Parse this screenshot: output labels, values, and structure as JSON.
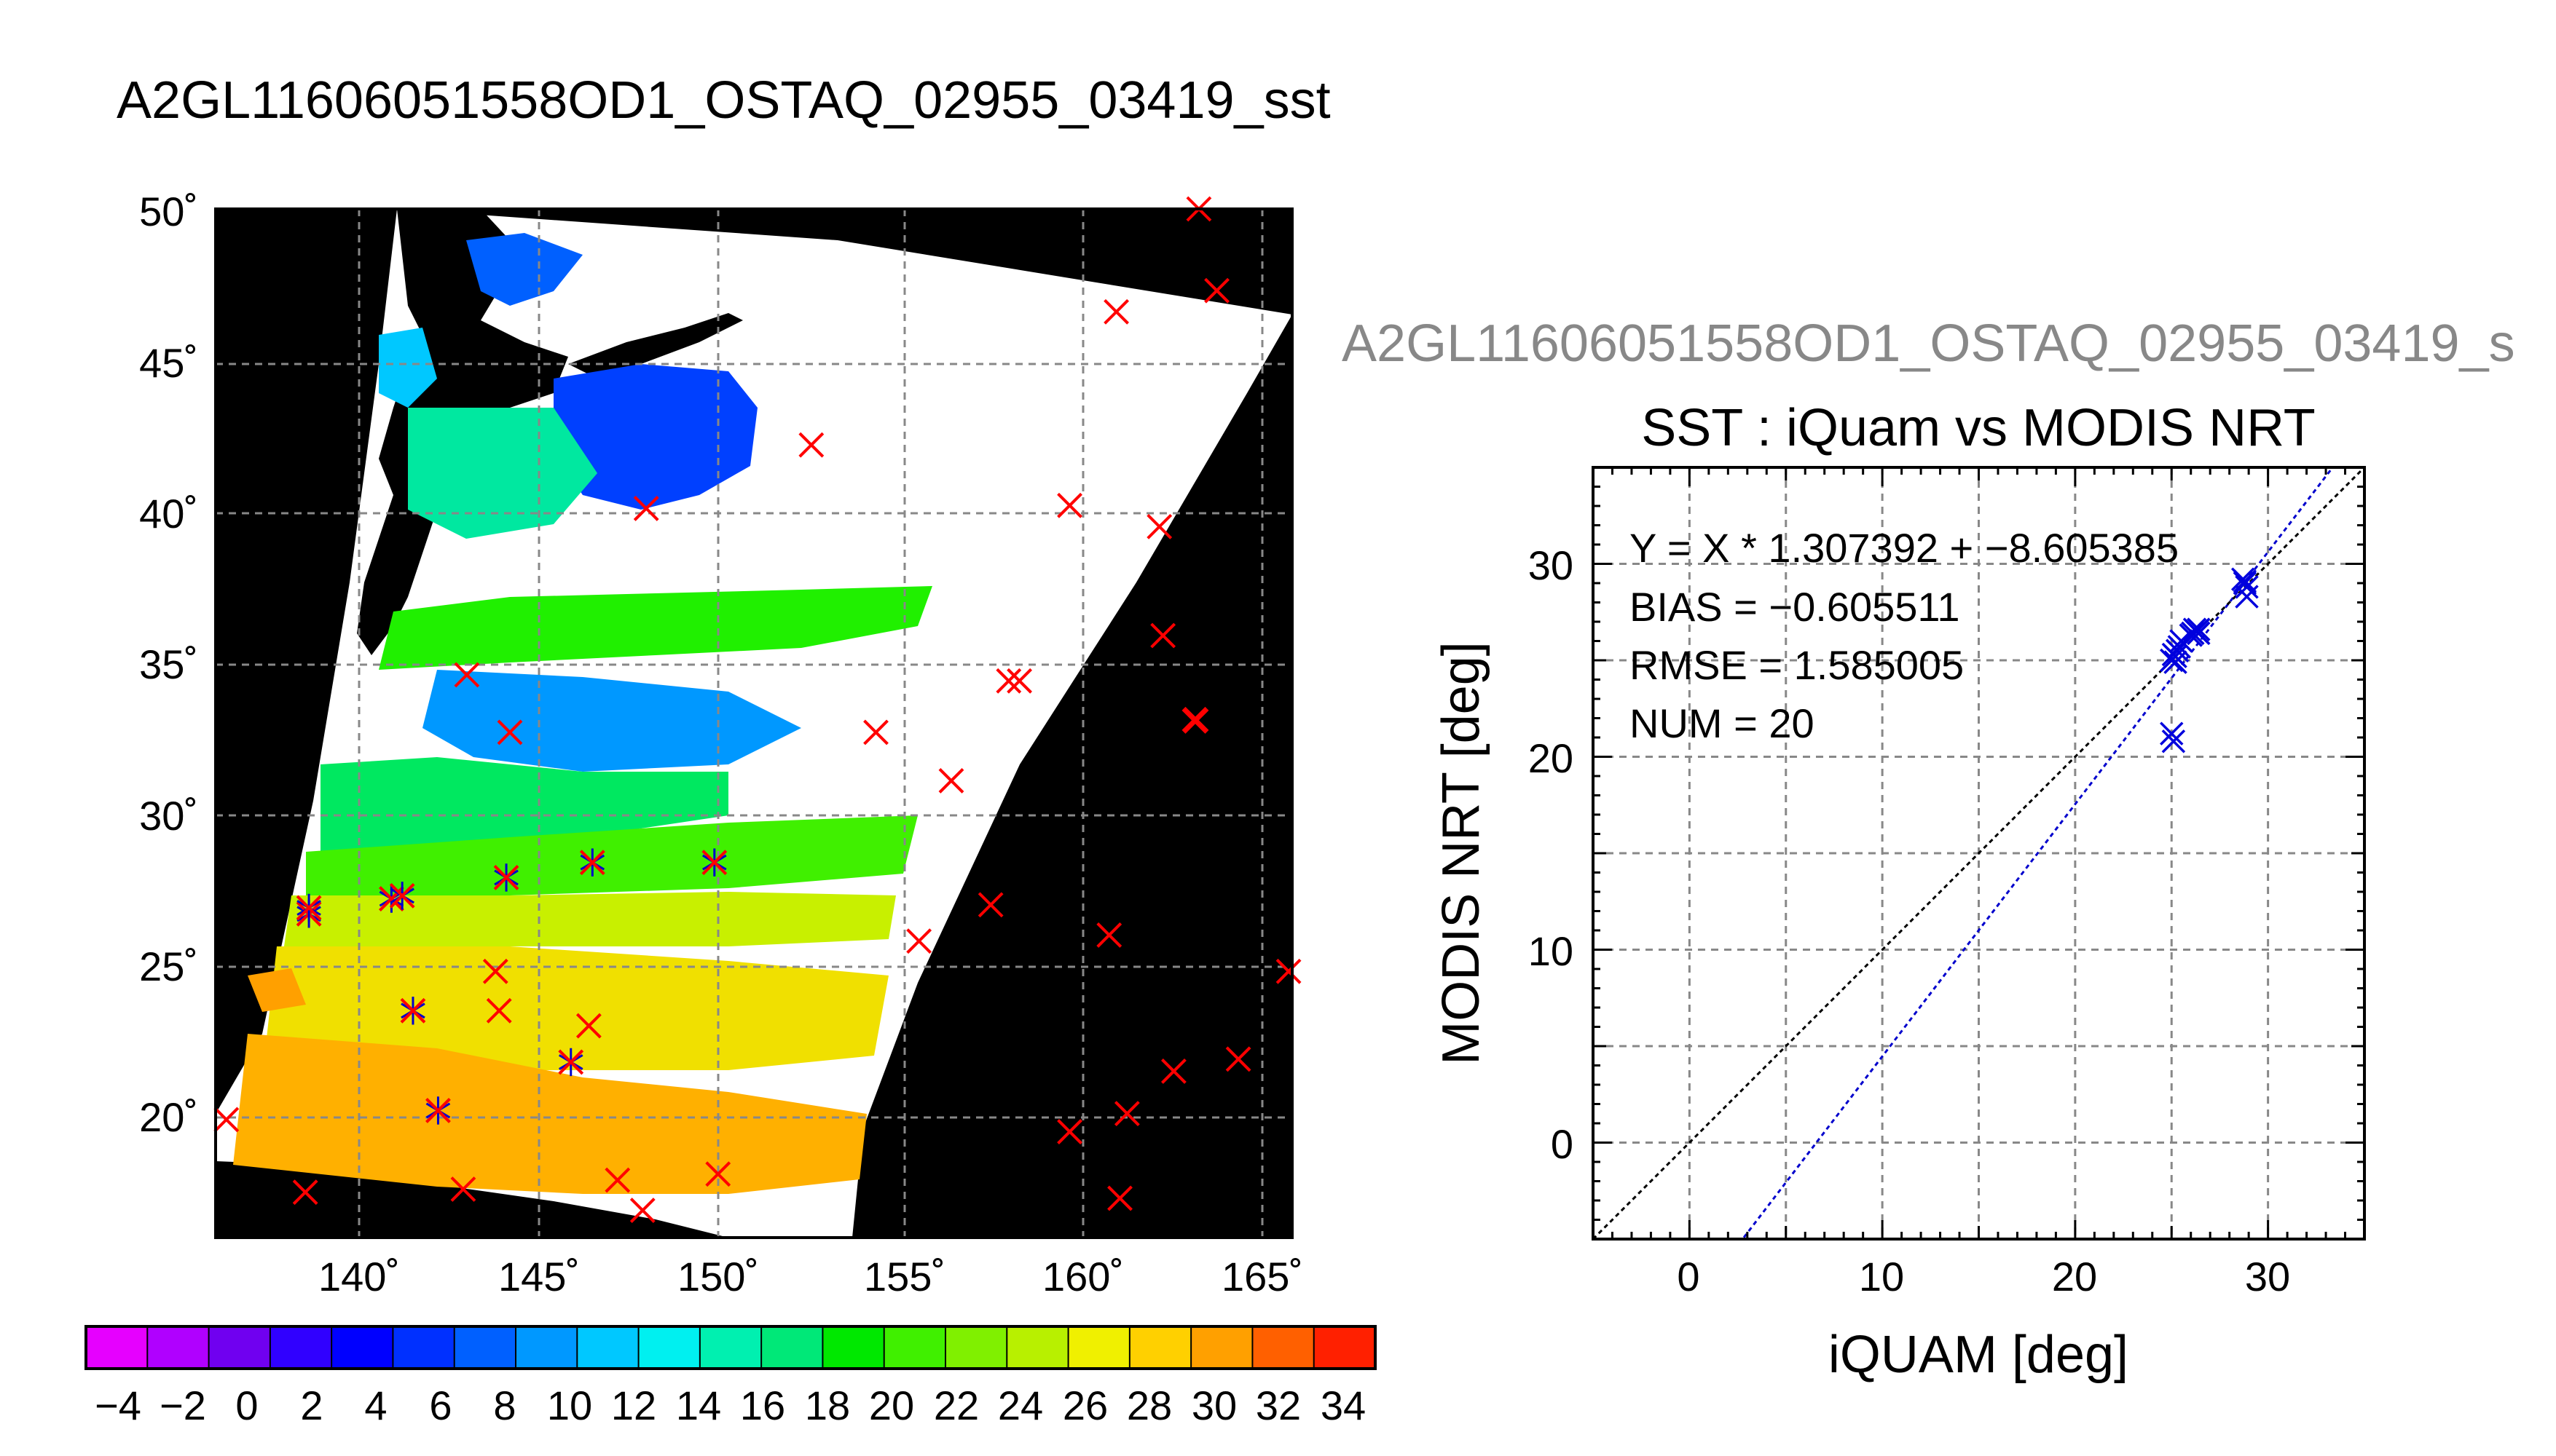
{
  "map": {
    "title": "A2GL11606051558OD1_OSTAQ_02955_03419_sst",
    "lon_ticks": [
      "140˚",
      "145˚",
      "150˚",
      "155˚",
      "160˚",
      "165˚"
    ],
    "lat_ticks": [
      "50˚",
      "45˚",
      "40˚",
      "35˚",
      "30˚",
      "25˚",
      "20˚"
    ],
    "colorbar": {
      "ticks": [
        "−4",
        "−2",
        "0",
        "2",
        "4",
        "6",
        "8",
        "10",
        "12",
        "14",
        "16",
        "18",
        "20",
        "22",
        "24",
        "26",
        "28",
        "30",
        "32",
        "34"
      ],
      "range": [
        -5,
        35
      ],
      "colors": [
        "#e600ff",
        "#b000ff",
        "#7000f0",
        "#3000ff",
        "#0000ff",
        "#0030ff",
        "#0060ff",
        "#0098ff",
        "#00c8ff",
        "#00f0f0",
        "#00f0b0",
        "#00e878",
        "#00e800",
        "#40f000",
        "#80f000",
        "#b8f000",
        "#f0f000",
        "#ffd000",
        "#ffa000",
        "#ff6000",
        "#ff2000"
      ]
    },
    "lon_range": [
      136,
      166
    ],
    "lat_range": [
      16,
      50
    ],
    "matchups": [
      {
        "lon": 136.3,
        "lat": 19.9,
        "type": "red"
      },
      {
        "lon": 138.6,
        "lat": 26.7,
        "type": "both"
      },
      {
        "lon": 138.6,
        "lat": 26.9,
        "type": "both"
      },
      {
        "lon": 138.5,
        "lat": 17.5,
        "type": "red"
      },
      {
        "lon": 140.9,
        "lat": 27.2,
        "type": "both"
      },
      {
        "lon": 141.2,
        "lat": 27.3,
        "type": "both"
      },
      {
        "lon": 141.5,
        "lat": 23.5,
        "type": "both"
      },
      {
        "lon": 142.2,
        "lat": 20.2,
        "type": "both"
      },
      {
        "lon": 142.9,
        "lat": 17.6,
        "type": "red"
      },
      {
        "lon": 143.0,
        "lat": 34.6,
        "type": "red"
      },
      {
        "lon": 143.8,
        "lat": 24.8,
        "type": "red"
      },
      {
        "lon": 143.9,
        "lat": 23.5,
        "type": "red"
      },
      {
        "lon": 144.1,
        "lat": 27.9,
        "type": "both"
      },
      {
        "lon": 144.2,
        "lat": 32.7,
        "type": "red"
      },
      {
        "lon": 145.9,
        "lat": 21.8,
        "type": "both"
      },
      {
        "lon": 146.4,
        "lat": 23.0,
        "type": "red"
      },
      {
        "lon": 146.5,
        "lat": 28.4,
        "type": "both"
      },
      {
        "lon": 147.2,
        "lat": 17.9,
        "type": "red"
      },
      {
        "lon": 147.9,
        "lat": 16.9,
        "type": "red"
      },
      {
        "lon": 148.0,
        "lat": 40.1,
        "type": "red"
      },
      {
        "lon": 149.9,
        "lat": 28.4,
        "type": "both"
      },
      {
        "lon": 150.0,
        "lat": 18.1,
        "type": "red"
      },
      {
        "lon": 152.6,
        "lat": 42.2,
        "type": "red"
      },
      {
        "lon": 154.4,
        "lat": 32.7,
        "type": "red"
      },
      {
        "lon": 155.6,
        "lat": 25.8,
        "type": "red"
      },
      {
        "lon": 156.5,
        "lat": 31.1,
        "type": "red"
      },
      {
        "lon": 157.6,
        "lat": 27.0,
        "type": "red"
      },
      {
        "lon": 158.1,
        "lat": 34.4,
        "type": "red"
      },
      {
        "lon": 158.4,
        "lat": 34.4,
        "type": "red"
      },
      {
        "lon": 159.8,
        "lat": 40.2,
        "type": "red"
      },
      {
        "lon": 159.8,
        "lat": 19.5,
        "type": "red"
      },
      {
        "lon": 160.9,
        "lat": 26.0,
        "type": "red"
      },
      {
        "lon": 161.1,
        "lat": 46.6,
        "type": "red"
      },
      {
        "lon": 161.2,
        "lat": 17.3,
        "type": "red"
      },
      {
        "lon": 161.4,
        "lat": 20.1,
        "type": "red"
      },
      {
        "lon": 162.3,
        "lat": 39.5,
        "type": "red"
      },
      {
        "lon": 162.4,
        "lat": 35.9,
        "type": "red"
      },
      {
        "lon": 162.7,
        "lat": 21.5,
        "type": "red"
      },
      {
        "lon": 163.3,
        "lat": 33.1,
        "type": "red-bold"
      },
      {
        "lon": 163.4,
        "lat": 50.0,
        "type": "red"
      },
      {
        "lon": 163.9,
        "lat": 47.3,
        "type": "red"
      },
      {
        "lon": 164.5,
        "lat": 21.9,
        "type": "red"
      },
      {
        "lon": 165.9,
        "lat": 24.8,
        "type": "red"
      }
    ]
  },
  "scatter": {
    "header": "A2GL11606051558OD1_OSTAQ_02955_03419_s",
    "title": "SST : iQuam vs MODIS NRT",
    "xlabel": "iQUAM [deg]",
    "ylabel": "MODIS NRT [deg]",
    "stats": {
      "equation": "Y = X * 1.307392 + −8.605385",
      "bias": "BIAS = −0.605511",
      "rmse": "RMSE = 1.585005",
      "num": "NUM = 20"
    }
  },
  "chart_data": {
    "type": "scatter",
    "title": "SST : iQuam vs MODIS NRT",
    "xlabel": "iQUAM [deg]",
    "ylabel": "MODIS NRT [deg]",
    "xlim": [
      -5,
      35
    ],
    "ylim": [
      -5,
      35
    ],
    "x_ticks": [
      "0",
      "10",
      "20",
      "30"
    ],
    "y_ticks": [
      "0",
      "10",
      "20",
      "30"
    ],
    "grid": true,
    "points": [
      {
        "x": 25.0,
        "y": 25.0
      },
      {
        "x": 25.1,
        "y": 25.3
      },
      {
        "x": 25.4,
        "y": 25.7
      },
      {
        "x": 25.5,
        "y": 26.0
      },
      {
        "x": 25.2,
        "y": 24.9
      },
      {
        "x": 26.1,
        "y": 26.4
      },
      {
        "x": 26.3,
        "y": 26.5
      },
      {
        "x": 26.4,
        "y": 26.6
      },
      {
        "x": 26.0,
        "y": 26.3
      },
      {
        "x": 25.0,
        "y": 21.2
      },
      {
        "x": 25.1,
        "y": 20.8
      },
      {
        "x": 28.8,
        "y": 29.0
      },
      {
        "x": 28.9,
        "y": 28.8
      },
      {
        "x": 28.7,
        "y": 29.2
      },
      {
        "x": 28.9,
        "y": 28.3
      },
      {
        "x": 25.3,
        "y": 25.5
      },
      {
        "x": 26.2,
        "y": 26.6
      },
      {
        "x": 28.8,
        "y": 29.1
      },
      {
        "x": 25.2,
        "y": 25.2
      },
      {
        "x": 26.4,
        "y": 26.4
      }
    ],
    "lines": [
      {
        "slope": 1.307392,
        "intercept": -8.605385,
        "style": "blue-dotted"
      },
      {
        "slope": 1,
        "intercept": 0,
        "style": "black-dotted"
      }
    ]
  }
}
